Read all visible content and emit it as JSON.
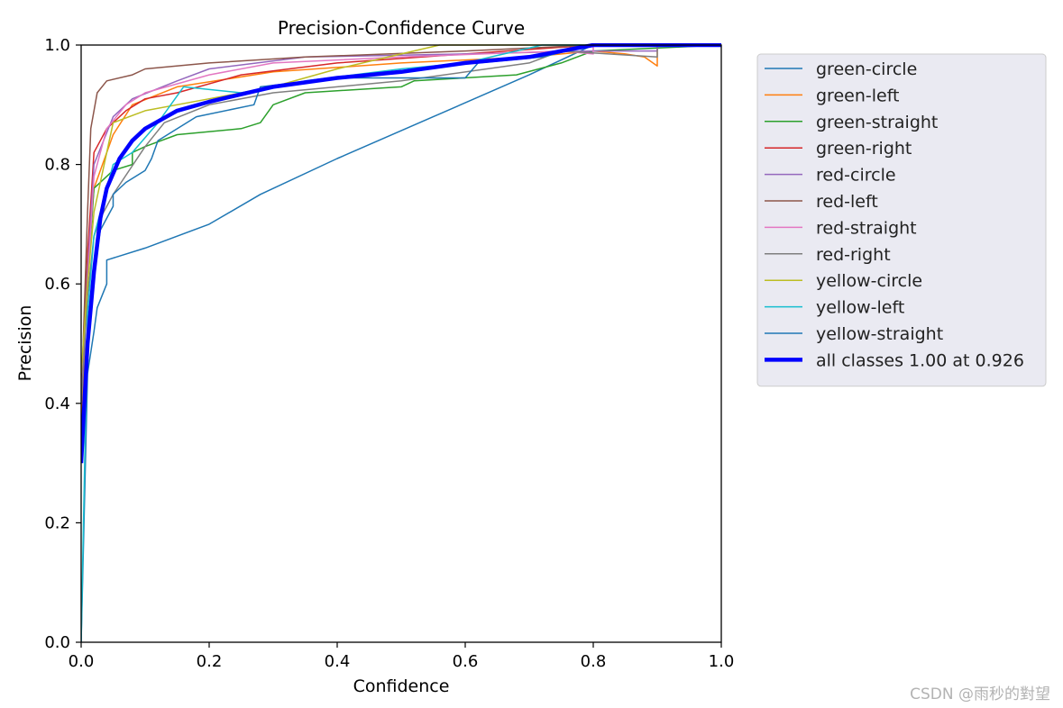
{
  "chart_data": {
    "type": "line",
    "title": "Precision-Confidence Curve",
    "xlabel": "Confidence",
    "ylabel": "Precision",
    "xlim": [
      0,
      1
    ],
    "ylim": [
      0,
      1
    ],
    "xticks": [
      "0.0",
      "0.2",
      "0.4",
      "0.6",
      "0.8",
      "1.0"
    ],
    "yticks": [
      "0.0",
      "0.2",
      "0.4",
      "0.6",
      "0.8",
      "1.0"
    ],
    "grid": false,
    "legend_position": "outside-right",
    "series": [
      {
        "name": "green-circle",
        "color": "#1f77b4",
        "points": [
          [
            0,
            0
          ],
          [
            0.01,
            0.45
          ],
          [
            0.02,
            0.52
          ],
          [
            0.025,
            0.56
          ],
          [
            0.04,
            0.6
          ],
          [
            0.04,
            0.64
          ],
          [
            0.1,
            0.66
          ],
          [
            0.2,
            0.7
          ],
          [
            0.28,
            0.75
          ],
          [
            0.4,
            0.81
          ],
          [
            0.55,
            0.88
          ],
          [
            0.7,
            0.95
          ],
          [
            0.8,
            1.0
          ],
          [
            1.0,
            1.0
          ]
        ]
      },
      {
        "name": "green-left",
        "color": "#ff7f0e",
        "points": [
          [
            0,
            0.35
          ],
          [
            0.01,
            0.62
          ],
          [
            0.02,
            0.76
          ],
          [
            0.05,
            0.85
          ],
          [
            0.08,
            0.9
          ],
          [
            0.15,
            0.93
          ],
          [
            0.3,
            0.955
          ],
          [
            0.5,
            0.97
          ],
          [
            0.7,
            0.98
          ],
          [
            0.8,
            0.99
          ],
          [
            0.85,
            0.985
          ],
          [
            0.88,
            0.98
          ],
          [
            0.9,
            0.965
          ],
          [
            0.9,
            1.0
          ],
          [
            1.0,
            1.0
          ]
        ]
      },
      {
        "name": "green-straight",
        "color": "#2ca02c",
        "points": [
          [
            0,
            0.4
          ],
          [
            0.01,
            0.6
          ],
          [
            0.02,
            0.76
          ],
          [
            0.05,
            0.79
          ],
          [
            0.08,
            0.8
          ],
          [
            0.08,
            0.82
          ],
          [
            0.1,
            0.83
          ],
          [
            0.15,
            0.85
          ],
          [
            0.25,
            0.86
          ],
          [
            0.28,
            0.87
          ],
          [
            0.3,
            0.9
          ],
          [
            0.35,
            0.92
          ],
          [
            0.5,
            0.93
          ],
          [
            0.52,
            0.94
          ],
          [
            0.68,
            0.95
          ],
          [
            0.75,
            0.97
          ],
          [
            0.8,
            0.99
          ],
          [
            1.0,
            1.0
          ]
        ]
      },
      {
        "name": "green-right",
        "color": "#d62728",
        "points": [
          [
            0,
            0.4
          ],
          [
            0.01,
            0.65
          ],
          [
            0.02,
            0.82
          ],
          [
            0.04,
            0.86
          ],
          [
            0.07,
            0.89
          ],
          [
            0.1,
            0.91
          ],
          [
            0.15,
            0.92
          ],
          [
            0.25,
            0.95
          ],
          [
            0.4,
            0.97
          ],
          [
            0.6,
            0.985
          ],
          [
            0.8,
            1.0
          ],
          [
            1.0,
            1.0
          ]
        ]
      },
      {
        "name": "red-circle",
        "color": "#9467bd",
        "points": [
          [
            0,
            0.4
          ],
          [
            0.01,
            0.62
          ],
          [
            0.02,
            0.8
          ],
          [
            0.05,
            0.88
          ],
          [
            0.08,
            0.91
          ],
          [
            0.15,
            0.94
          ],
          [
            0.2,
            0.96
          ],
          [
            0.35,
            0.98
          ],
          [
            0.6,
            0.985
          ],
          [
            0.8,
            0.99
          ],
          [
            0.9,
            0.99
          ],
          [
            0.9,
            1.0
          ],
          [
            1.0,
            1.0
          ]
        ]
      },
      {
        "name": "red-left",
        "color": "#8c564b",
        "points": [
          [
            0,
            0.4
          ],
          [
            0.01,
            0.72
          ],
          [
            0.015,
            0.86
          ],
          [
            0.025,
            0.92
          ],
          [
            0.04,
            0.94
          ],
          [
            0.08,
            0.95
          ],
          [
            0.1,
            0.96
          ],
          [
            0.2,
            0.97
          ],
          [
            0.35,
            0.98
          ],
          [
            0.6,
            0.99
          ],
          [
            0.8,
            1.0
          ],
          [
            1.0,
            1.0
          ]
        ]
      },
      {
        "name": "red-straight",
        "color": "#e377c2",
        "points": [
          [
            0,
            0.4
          ],
          [
            0.01,
            0.6
          ],
          [
            0.02,
            0.78
          ],
          [
            0.04,
            0.86
          ],
          [
            0.07,
            0.9
          ],
          [
            0.1,
            0.92
          ],
          [
            0.2,
            0.95
          ],
          [
            0.3,
            0.97
          ],
          [
            0.5,
            0.98
          ],
          [
            0.75,
            0.99
          ],
          [
            0.8,
            0.985
          ],
          [
            0.8,
            1.0
          ],
          [
            1.0,
            1.0
          ]
        ]
      },
      {
        "name": "red-right",
        "color": "#7f7f7f",
        "points": [
          [
            0,
            0.4
          ],
          [
            0.01,
            0.58
          ],
          [
            0.02,
            0.68
          ],
          [
            0.03,
            0.71
          ],
          [
            0.05,
            0.75
          ],
          [
            0.1,
            0.83
          ],
          [
            0.13,
            0.87
          ],
          [
            0.2,
            0.9
          ],
          [
            0.3,
            0.92
          ],
          [
            0.5,
            0.94
          ],
          [
            0.7,
            0.97
          ],
          [
            0.75,
            0.99
          ],
          [
            0.9,
            0.98
          ],
          [
            0.9,
            1.0
          ],
          [
            1.0,
            1.0
          ]
        ]
      },
      {
        "name": "yellow-circle",
        "color": "#bcbd22",
        "points": [
          [
            0,
            0.45
          ],
          [
            0.01,
            0.6
          ],
          [
            0.02,
            0.72
          ],
          [
            0.04,
            0.82
          ],
          [
            0.05,
            0.87
          ],
          [
            0.1,
            0.89
          ],
          [
            0.2,
            0.91
          ],
          [
            0.3,
            0.93
          ],
          [
            0.4,
            0.96
          ],
          [
            0.5,
            0.985
          ],
          [
            0.56,
            1.0
          ],
          [
            1.0,
            1.0
          ]
        ]
      },
      {
        "name": "yellow-left",
        "color": "#17becf",
        "points": [
          [
            0,
            0
          ],
          [
            0.01,
            0.55
          ],
          [
            0.02,
            0.68
          ],
          [
            0.05,
            0.8
          ],
          [
            0.08,
            0.82
          ],
          [
            0.12,
            0.87
          ],
          [
            0.16,
            0.93
          ],
          [
            0.25,
            0.92
          ],
          [
            0.35,
            0.94
          ],
          [
            0.5,
            0.96
          ],
          [
            0.6,
            0.97
          ],
          [
            0.72,
            1.0
          ],
          [
            1.0,
            1.0
          ]
        ]
      },
      {
        "name": "yellow-straight",
        "color": "#1f77b4",
        "points": [
          [
            0,
            0.3
          ],
          [
            0.01,
            0.5
          ],
          [
            0.02,
            0.62
          ],
          [
            0.03,
            0.69
          ],
          [
            0.05,
            0.73
          ],
          [
            0.05,
            0.75
          ],
          [
            0.07,
            0.77
          ],
          [
            0.1,
            0.79
          ],
          [
            0.11,
            0.81
          ],
          [
            0.12,
            0.84
          ],
          [
            0.18,
            0.88
          ],
          [
            0.27,
            0.9
          ],
          [
            0.28,
            0.93
          ],
          [
            0.4,
            0.945
          ],
          [
            0.6,
            0.945
          ],
          [
            0.62,
            0.97
          ],
          [
            0.72,
            0.98
          ],
          [
            0.8,
            1.0
          ],
          [
            1.0,
            1.0
          ]
        ]
      },
      {
        "name": "all classes 1.00 at 0.926",
        "color": "#0000ff",
        "bold": true,
        "points": [
          [
            0,
            0.3
          ],
          [
            0.005,
            0.4
          ],
          [
            0.01,
            0.5
          ],
          [
            0.02,
            0.62
          ],
          [
            0.03,
            0.71
          ],
          [
            0.04,
            0.76
          ],
          [
            0.06,
            0.81
          ],
          [
            0.08,
            0.84
          ],
          [
            0.1,
            0.86
          ],
          [
            0.15,
            0.89
          ],
          [
            0.2,
            0.905
          ],
          [
            0.3,
            0.93
          ],
          [
            0.4,
            0.945
          ],
          [
            0.5,
            0.955
          ],
          [
            0.6,
            0.97
          ],
          [
            0.7,
            0.98
          ],
          [
            0.8,
            1.0
          ],
          [
            0.926,
            1.0
          ],
          [
            1.0,
            1.0
          ]
        ]
      }
    ]
  },
  "watermark": "CSDN @雨秒的對望"
}
